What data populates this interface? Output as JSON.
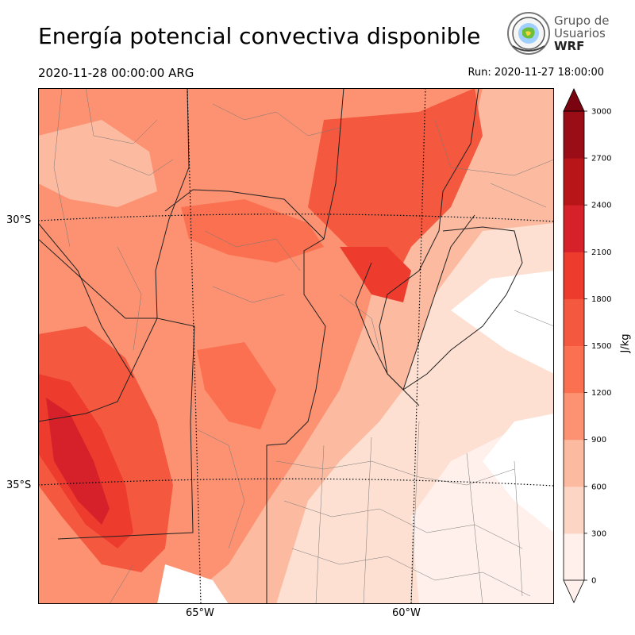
{
  "header": {
    "title": "Energía potencial convectiva disponible",
    "valid_time": "2020-11-28 00:00:00 ARG",
    "run_time": "Run: 2020-11-27 18:00:00"
  },
  "logo": {
    "line1": "Grupo de",
    "line2": "Usuarios",
    "line3": "WRF"
  },
  "map": {
    "lat_labels": [
      "30°S",
      "35°S"
    ],
    "lon_labels": [
      "65°W",
      "60°W"
    ]
  },
  "colorbar": {
    "unit": "J/kg",
    "ticks": [
      "0",
      "300",
      "600",
      "900",
      "1200",
      "1500",
      "1800",
      "2100",
      "2400",
      "2700",
      "3000"
    ],
    "colors": [
      "#fff0eb",
      "#fdd5c4",
      "#fcbba1",
      "#fc9272",
      "#fb7050",
      "#f4593f",
      "#ed3b2d",
      "#d7212a",
      "#b81519",
      "#9b0d16",
      "#7a0510"
    ]
  }
}
